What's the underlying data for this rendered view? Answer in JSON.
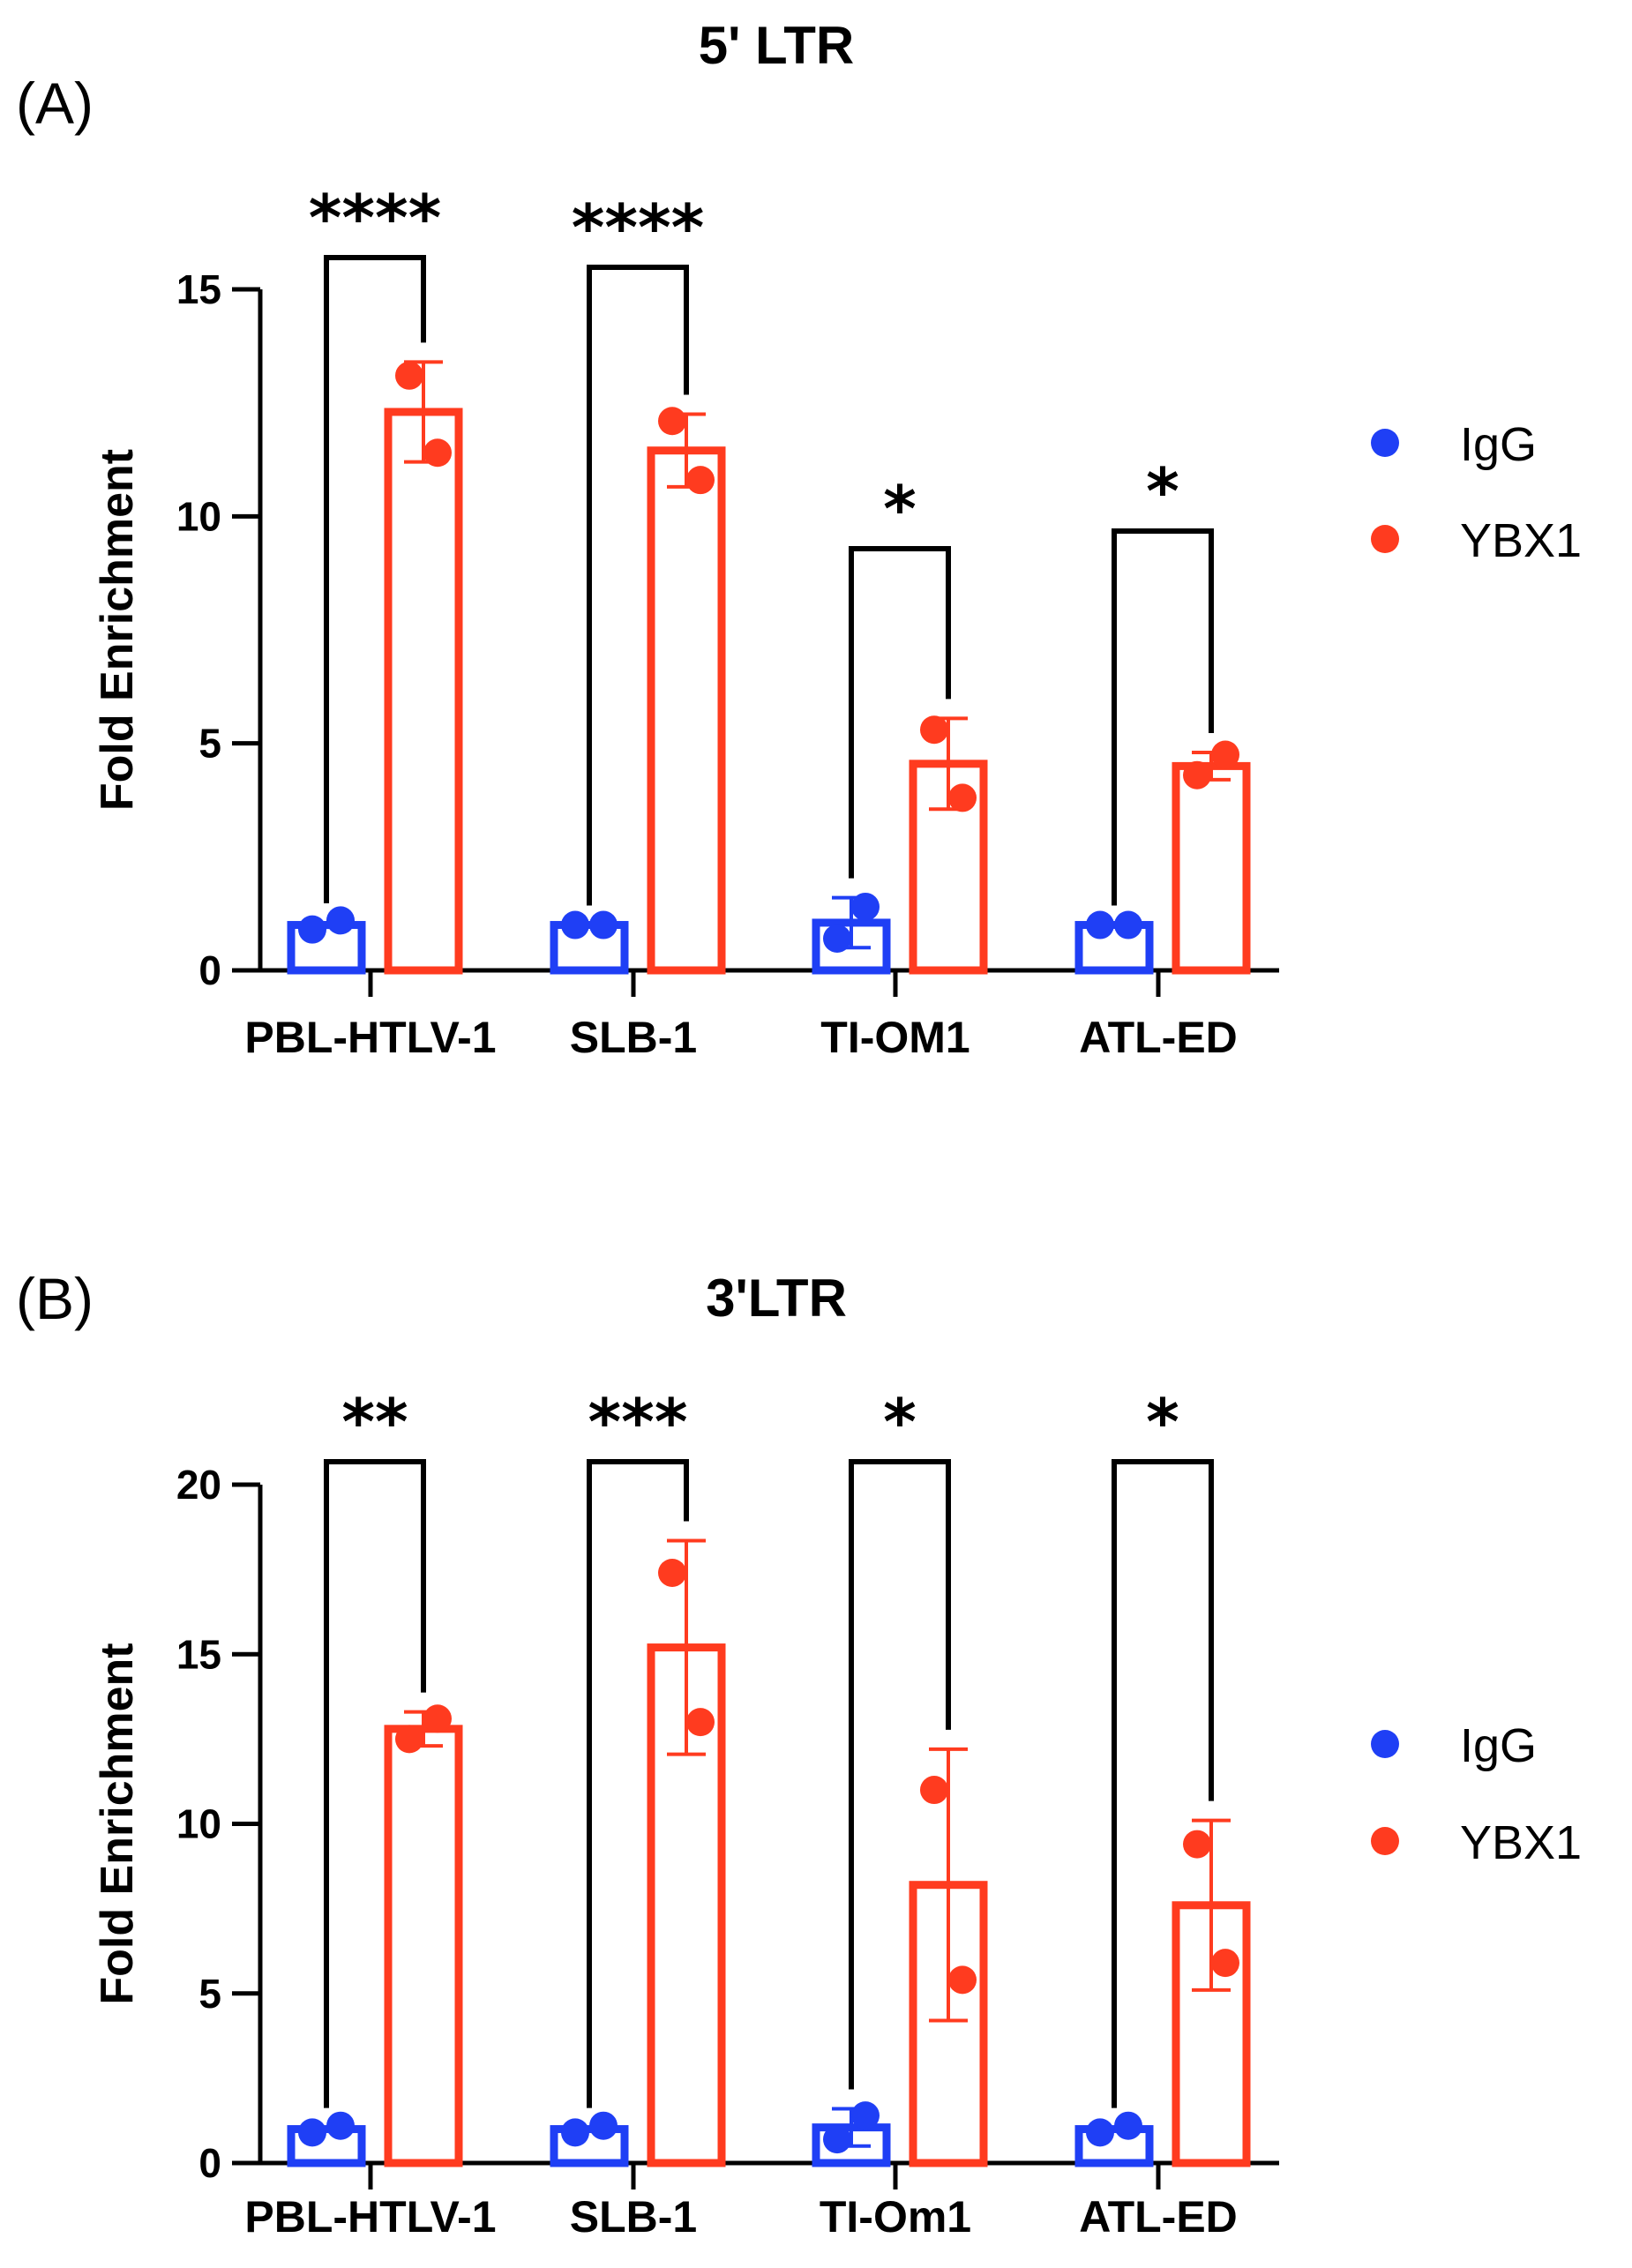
{
  "chart_data": [
    {
      "panel": "(A)",
      "type": "bar",
      "title": "5' LTR",
      "ylabel": "Fold  Enrichment",
      "xlabel": "",
      "ylim": [
        0,
        15
      ],
      "yticks": [
        0,
        5,
        10,
        15
      ],
      "categories": [
        "PBL-HTLV-1",
        "SLB-1",
        "TI-OM1",
        "ATL-ED"
      ],
      "colors": {
        "IgG": "#1f3ff5",
        "YBX1": "#ff3b1f"
      },
      "legend": [
        "IgG",
        "YBX1"
      ],
      "series": [
        {
          "name": "IgG",
          "values": [
            1.0,
            1.0,
            1.05,
            1.0
          ],
          "errors": [
            0.05,
            0.0,
            0.55,
            0.0
          ],
          "points": [
            [
              0.9,
              1.1
            ],
            [
              1.0,
              1.0
            ],
            [
              0.7,
              1.4
            ],
            [
              1.0,
              1.0
            ]
          ]
        },
        {
          "name": "YBX1",
          "values": [
            12.3,
            11.45,
            4.55,
            4.5
          ],
          "errors": [
            1.1,
            0.8,
            1.0,
            0.3
          ],
          "points": [
            [
              13.1,
              11.4
            ],
            [
              12.1,
              10.8
            ],
            [
              5.3,
              3.8
            ],
            [
              4.3,
              4.75
            ]
          ]
        }
      ],
      "significance": [
        "****",
        "****",
        "*",
        "*"
      ]
    },
    {
      "panel": "(B)",
      "type": "bar",
      "title": "3'LTR",
      "ylabel": "Fold  Enrichment",
      "xlabel": "",
      "ylim": [
        0,
        20
      ],
      "yticks": [
        0,
        5,
        10,
        15,
        20
      ],
      "categories": [
        "PBL-HTLV-1",
        "SLB-1",
        "TI-Om1",
        "ATL-ED"
      ],
      "colors": {
        "IgG": "#1f3ff5",
        "YBX1": "#ff3b1f"
      },
      "legend": [
        "IgG",
        "YBX1"
      ],
      "series": [
        {
          "name": "IgG",
          "values": [
            1.0,
            1.0,
            1.05,
            1.0
          ],
          "errors": [
            0.05,
            0.05,
            0.55,
            0.05
          ],
          "points": [
            [
              0.9,
              1.1
            ],
            [
              0.9,
              1.1
            ],
            [
              0.7,
              1.4
            ],
            [
              0.9,
              1.1
            ]
          ]
        },
        {
          "name": "YBX1",
          "values": [
            12.8,
            15.2,
            8.2,
            7.6
          ],
          "errors": [
            0.5,
            3.15,
            4.0,
            2.5
          ],
          "points": [
            [
              12.5,
              13.1
            ],
            [
              17.4,
              13.0
            ],
            [
              11.0,
              5.4
            ],
            [
              9.4,
              5.9
            ]
          ]
        }
      ],
      "significance": [
        "**",
        "***",
        "*",
        "*"
      ]
    }
  ]
}
